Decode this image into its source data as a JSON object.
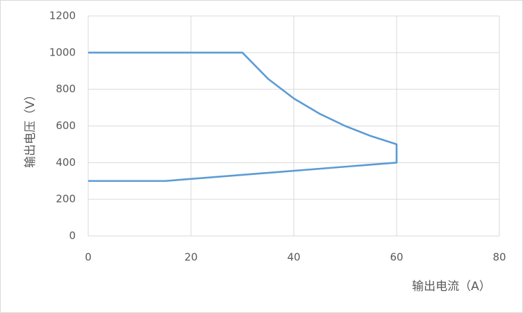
{
  "chart_data": {
    "type": "line",
    "x": [
      0,
      30,
      35,
      40,
      45,
      50,
      55,
      60,
      60,
      15,
      0
    ],
    "series": [
      {
        "color": "#5b9bd5",
        "values": [
          1000,
          1000,
          857,
          750,
          667,
          600,
          545,
          500,
          400,
          300,
          300
        ]
      }
    ],
    "x_label": "输出电流（A）",
    "y_label": "输出电压（V）",
    "xlim": [
      0,
      80
    ],
    "xticks": [
      0,
      20,
      40,
      60,
      80
    ],
    "ylim": [
      0,
      1200
    ],
    "yticks": [
      0,
      200,
      400,
      600,
      800,
      1000,
      1200
    ],
    "grid": true
  }
}
